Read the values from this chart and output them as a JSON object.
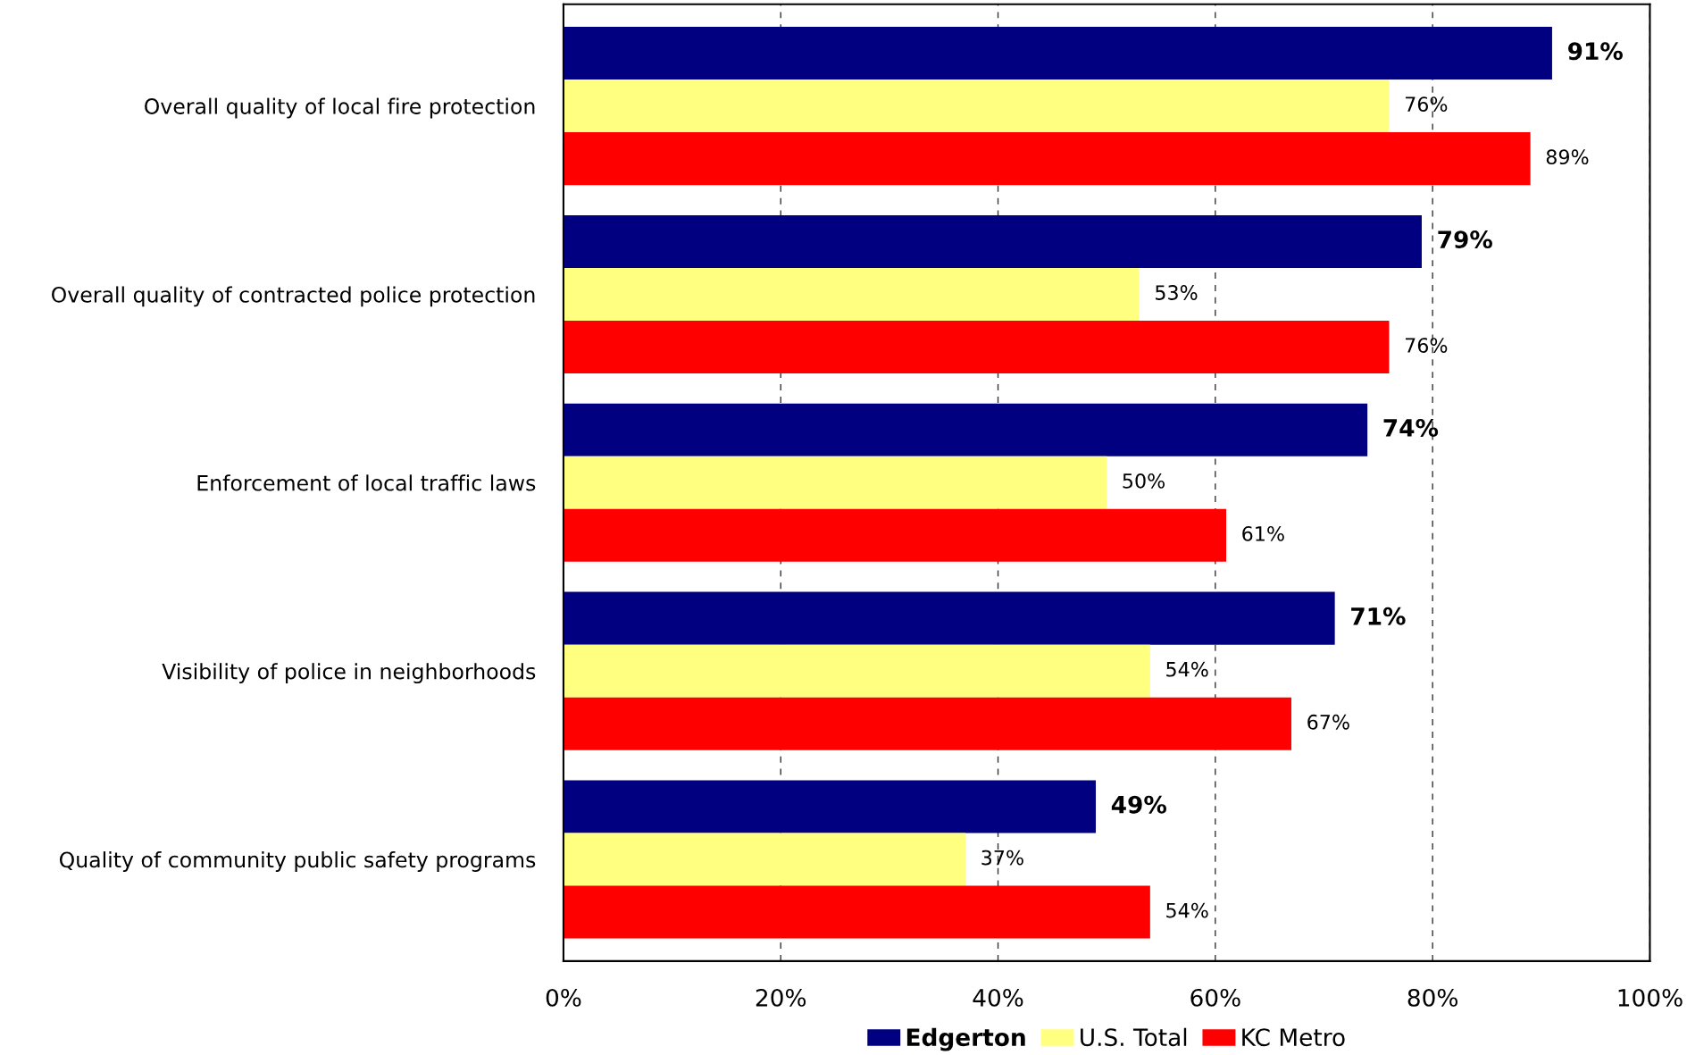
{
  "chart_data": {
    "type": "bar",
    "orientation": "horizontal",
    "categories": [
      "Overall quality of local fire protection",
      "Overall quality of contracted police protection",
      "Enforcement of local traffic laws",
      "Visibility of police in neighborhoods",
      "Quality of community public safety programs"
    ],
    "series": [
      {
        "name": "Edgerton",
        "color": "#000080",
        "values": [
          91,
          79,
          74,
          71,
          49
        ],
        "value_labels": [
          "91%",
          "79%",
          "74%",
          "71%",
          "49%"
        ]
      },
      {
        "name": "U.S. Total",
        "color": "#ffff80",
        "values": [
          76,
          53,
          50,
          54,
          37
        ],
        "value_labels": [
          "76%",
          "53%",
          "50%",
          "54%",
          "37%"
        ]
      },
      {
        "name": "KC Metro",
        "color": "#ff0000",
        "values": [
          89,
          76,
          61,
          67,
          54
        ],
        "value_labels": [
          "89%",
          "76%",
          "61%",
          "67%",
          "54%"
        ]
      }
    ],
    "xlim": [
      0,
      100
    ],
    "xticks": [
      {
        "value": 0,
        "label": "0%"
      },
      {
        "value": 20,
        "label": "20%"
      },
      {
        "value": 40,
        "label": "40%"
      },
      {
        "value": 60,
        "label": "60%"
      },
      {
        "value": 80,
        "label": "80%"
      },
      {
        "value": 100,
        "label": "100%"
      }
    ],
    "grid": "x",
    "legend": "bottom"
  }
}
